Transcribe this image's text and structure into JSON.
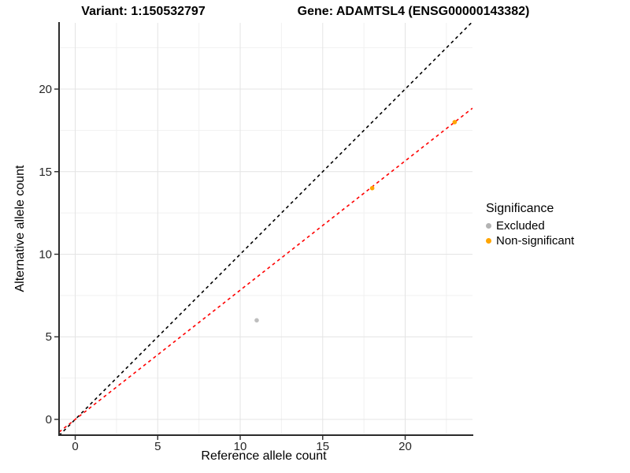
{
  "chart_data": {
    "type": "scatter",
    "title_left": "Variant: 1:150532797",
    "title_right": "Gene: ADAMTSL4 (ENSG00000143382)",
    "xlabel": "Reference allele count",
    "ylabel": "Alternative allele count",
    "xlim": [
      -0.98,
      24.08
    ],
    "ylim": [
      -0.955,
      24.01
    ],
    "xticks": [
      0,
      5,
      10,
      15,
      20
    ],
    "yticks": [
      0,
      5,
      10,
      15,
      20
    ],
    "minor_ticks": [
      2.5,
      7.5,
      12.5,
      17.5,
      22.5
    ],
    "grid": true,
    "colors": {
      "excluded": "#BEBEBE",
      "excluded_legend": "#B3B3B3",
      "non_significant": "#FFA500",
      "identity_line": "#000000",
      "fit_line": "#FF0000",
      "grid_major": "#E4E4E4",
      "grid_minor": "#F1F1F1",
      "axis_line": "#2B2B2B",
      "tick_text": "#262626"
    },
    "legend": {
      "title": "Significance",
      "position": "right",
      "items": [
        {
          "label": "Excluded",
          "color": "#B3B3B3"
        },
        {
          "label": "Non-significant",
          "color": "#FFA500"
        }
      ]
    },
    "series": [
      {
        "name": "Excluded",
        "color": "#BEBEBE",
        "points": [
          {
            "x": 11,
            "y": 6
          }
        ]
      },
      {
        "name": "Non-significant",
        "color": "#FFA500",
        "points": [
          {
            "x": 18,
            "y": 14
          },
          {
            "x": 23,
            "y": 18
          }
        ]
      }
    ],
    "lines": [
      {
        "name": "identity-line",
        "color": "#000000",
        "dashed": true,
        "slope": 1,
        "intercept": 0
      },
      {
        "name": "fit-line",
        "color": "#FF0000",
        "dashed": true,
        "slope": 0.7826,
        "intercept": 0
      }
    ]
  }
}
